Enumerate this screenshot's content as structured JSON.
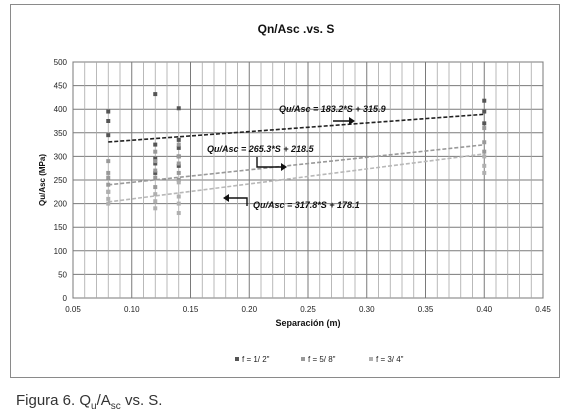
{
  "chart_data": {
    "type": "scatter",
    "title": "Qn/Asc .vs. S",
    "xlabel": "Separación (m)",
    "ylabel": "Qu/Asc (MPa)",
    "xlim": [
      0.05,
      0.45
    ],
    "ylim": [
      0,
      500
    ],
    "xticks": [
      "0.05",
      "0.10",
      "0.15",
      "0.20",
      "0.25",
      "0.30",
      "0.35",
      "0.40",
      "0.45"
    ],
    "yticks": [
      "0",
      "50",
      "100",
      "150",
      "200",
      "250",
      "300",
      "350",
      "400",
      "450",
      "500"
    ],
    "grid": true,
    "legend_position": "bottom",
    "series": [
      {
        "name": "f = 1/ 2\"",
        "color": "#555555",
        "points": [
          [
            0.08,
            395
          ],
          [
            0.08,
            375
          ],
          [
            0.08,
            345
          ],
          [
            0.12,
            432
          ],
          [
            0.12,
            325
          ],
          [
            0.12,
            295
          ],
          [
            0.12,
            285
          ],
          [
            0.12,
            265
          ],
          [
            0.14,
            402
          ],
          [
            0.14,
            335
          ],
          [
            0.14,
            318
          ],
          [
            0.14,
            300
          ],
          [
            0.14,
            280
          ],
          [
            0.4,
            418
          ],
          [
            0.4,
            395
          ],
          [
            0.4,
            370
          ]
        ],
        "trend": {
          "label": "Qu/Asc = 183.2*S + 315.9",
          "slope": 183.2,
          "intercept": 315.9
        }
      },
      {
        "name": "f = 5/ 8\"",
        "color": "#999999",
        "points": [
          [
            0.08,
            290
          ],
          [
            0.08,
            265
          ],
          [
            0.08,
            255
          ],
          [
            0.08,
            240
          ],
          [
            0.08,
            225
          ],
          [
            0.12,
            310
          ],
          [
            0.12,
            290
          ],
          [
            0.12,
            270
          ],
          [
            0.12,
            255
          ],
          [
            0.12,
            235
          ],
          [
            0.14,
            325
          ],
          [
            0.14,
            300
          ],
          [
            0.14,
            285
          ],
          [
            0.14,
            265
          ],
          [
            0.14,
            250
          ],
          [
            0.4,
            360
          ],
          [
            0.4,
            330
          ],
          [
            0.4,
            310
          ]
        ],
        "trend": {
          "label": "Qu/Asc = 265.3*S + 218.5",
          "slope": 265.3,
          "intercept": 218.5
        }
      },
      {
        "name": "f = 3/ 4\"",
        "color": "#b0b0b0",
        "points": [
          [
            0.08,
            225
          ],
          [
            0.08,
            210
          ],
          [
            0.08,
            200
          ],
          [
            0.12,
            220
          ],
          [
            0.12,
            205
          ],
          [
            0.12,
            190
          ],
          [
            0.14,
            245
          ],
          [
            0.14,
            215
          ],
          [
            0.14,
            200
          ],
          [
            0.14,
            180
          ],
          [
            0.4,
            300
          ],
          [
            0.4,
            280
          ],
          [
            0.4,
            265
          ]
        ],
        "trend": {
          "label": "Qu/Asc = 317.8*S + 178.1",
          "slope": 317.8,
          "intercept": 178.1
        }
      }
    ]
  },
  "caption": {
    "prefix": "Figura 6. Q",
    "sub1": "u",
    "mid": "/A",
    "sub2": "sc",
    "suffix": " vs. S."
  }
}
